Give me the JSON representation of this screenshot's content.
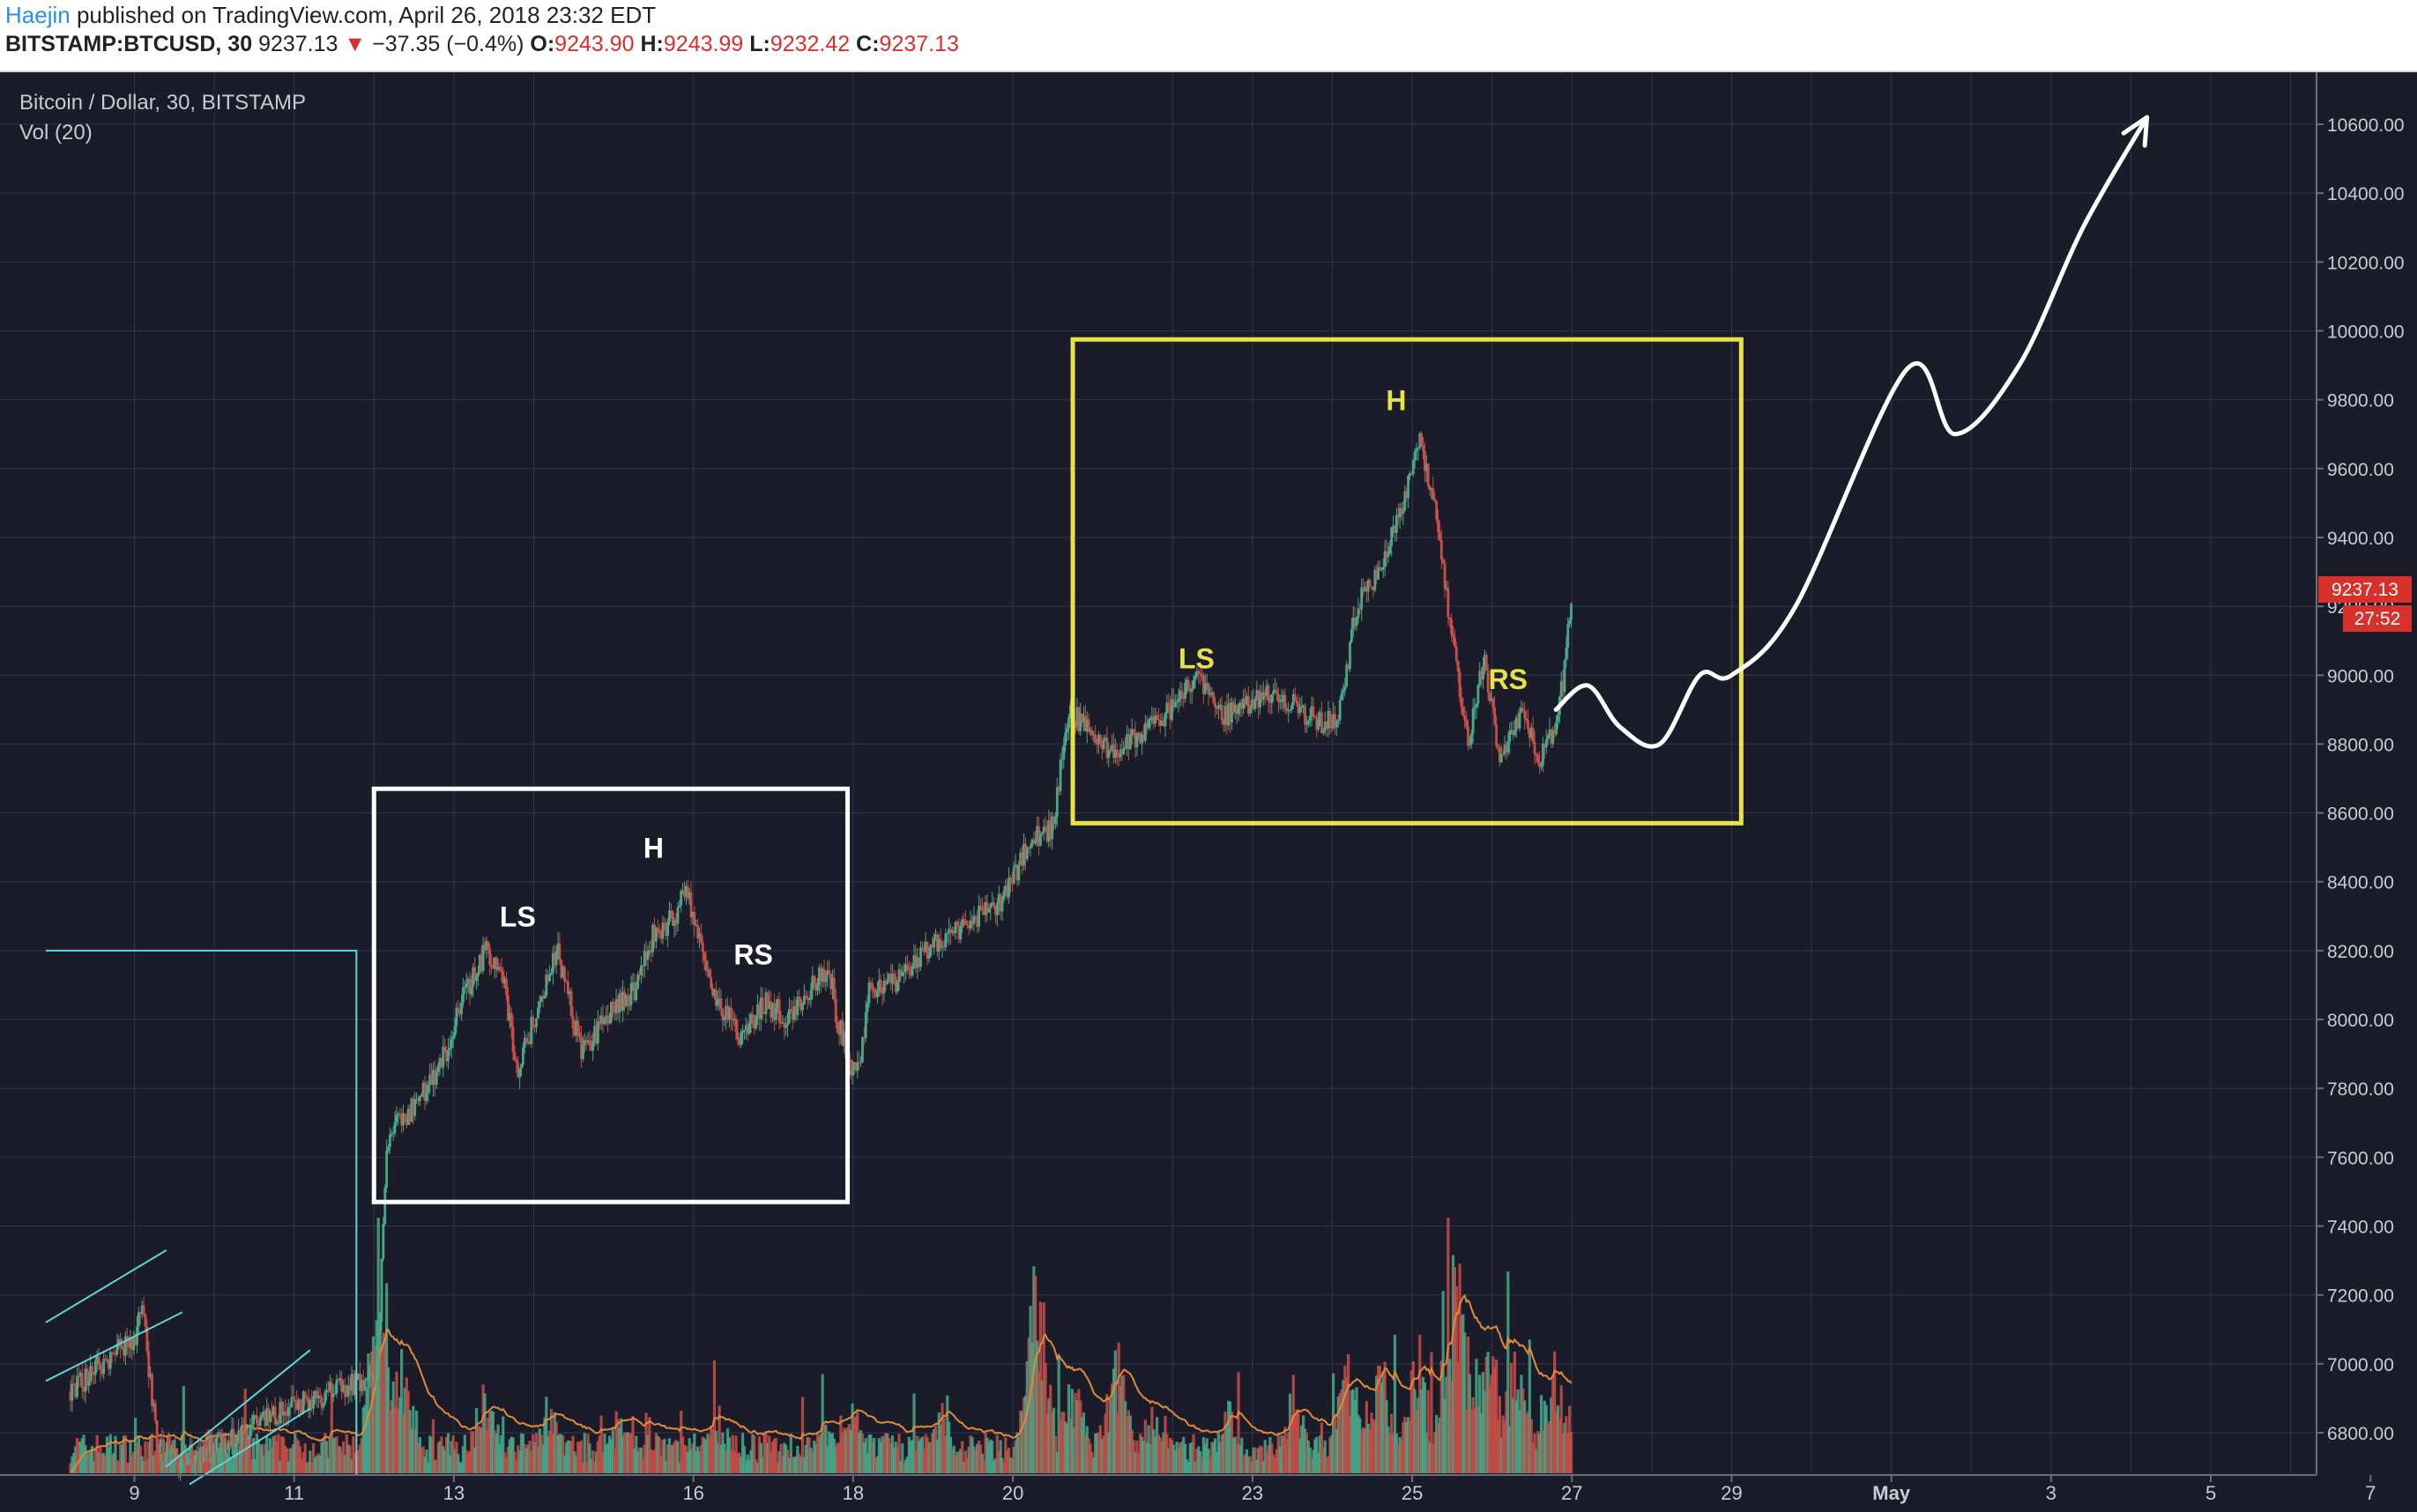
{
  "header": {
    "author": "Haejin",
    "published_text": "published on TradingView.com, April 26, 2018 23:32 EDT",
    "symbol": "BITSTAMP:BTCUSD, 30",
    "last": "9237.13",
    "change_arrow": "▼",
    "change": "−37.35 (−0.4%)",
    "o_label": "O:",
    "o_value": "9243.90",
    "h_label": "H:",
    "h_value": "9243.99",
    "l_label": "L:",
    "l_value": "9232.42",
    "c_label": "C:",
    "c_value": "9237.13"
  },
  "chart_data": {
    "type": "candlestick",
    "title": "Bitcoin / Dollar, 30, BITSTAMP",
    "subtitle": "Vol (20)",
    "ylim": [
      6650,
      10750
    ],
    "y_ticks": [
      "10600.00",
      "10400.00",
      "10200.00",
      "10000.00",
      "9800.00",
      "9600.00",
      "9400.00",
      "9200.00",
      "9000.00",
      "8800.00",
      "8600.00",
      "8400.00",
      "8200.00",
      "8000.00",
      "7800.00",
      "7600.00",
      "7400.00",
      "7200.00",
      "7000.00",
      "6800.00"
    ],
    "y_tick_values": [
      10600,
      10400,
      10200,
      10000,
      9800,
      9600,
      9400,
      9200,
      9000,
      8800,
      8600,
      8400,
      8200,
      8000,
      7800,
      7600,
      7400,
      7200,
      7000,
      6800
    ],
    "x_ticks": [
      "9",
      "11",
      "13",
      "16",
      "18",
      "20",
      "23",
      "25",
      "27",
      "29",
      "May",
      "3",
      "5",
      "7"
    ],
    "x_tick_days": [
      9,
      11,
      13,
      16,
      18,
      20,
      23,
      25,
      27,
      29,
      31,
      33,
      35,
      37
    ],
    "last_price_label": "9237.13",
    "countdown_label": "27:52",
    "last_price": 9237.13,
    "price_path": [
      [
        8.2,
        6920
      ],
      [
        8.6,
        7000
      ],
      [
        9.0,
        7080
      ],
      [
        9.1,
        7150
      ],
      [
        9.2,
        6950
      ],
      [
        9.3,
        6750
      ],
      [
        9.6,
        6720
      ],
      [
        10.0,
        6760
      ],
      [
        10.5,
        6820
      ],
      [
        11.0,
        6880
      ],
      [
        11.5,
        6920
      ],
      [
        11.9,
        6950
      ],
      [
        12.05,
        7000
      ],
      [
        12.15,
        7600
      ],
      [
        12.3,
        7700
      ],
      [
        12.5,
        7750
      ],
      [
        12.7,
        7820
      ],
      [
        12.9,
        7900
      ],
      [
        13.1,
        8050
      ],
      [
        13.4,
        8200
      ],
      [
        13.6,
        8150
      ],
      [
        13.8,
        7850
      ],
      [
        14.0,
        8000
      ],
      [
        14.3,
        8200
      ],
      [
        14.6,
        7900
      ],
      [
        14.9,
        8000
      ],
      [
        15.3,
        8100
      ],
      [
        15.5,
        8250
      ],
      [
        15.8,
        8300
      ],
      [
        15.9,
        8400
      ],
      [
        16.1,
        8200
      ],
      [
        16.3,
        8050
      ],
      [
        16.6,
        7950
      ],
      [
        16.9,
        8050
      ],
      [
        17.2,
        8000
      ],
      [
        17.5,
        8100
      ],
      [
        17.7,
        8150
      ],
      [
        17.8,
        8000
      ],
      [
        18.0,
        7850
      ],
      [
        18.1,
        7900
      ],
      [
        18.2,
        8100
      ],
      [
        18.5,
        8100
      ],
      [
        18.9,
        8200
      ],
      [
        19.2,
        8250
      ],
      [
        19.6,
        8300
      ],
      [
        19.9,
        8350
      ],
      [
        20.2,
        8520
      ],
      [
        20.5,
        8560
      ],
      [
        20.7,
        8900
      ],
      [
        20.9,
        8850
      ],
      [
        21.2,
        8780
      ],
      [
        21.6,
        8820
      ],
      [
        22.0,
        8900
      ],
      [
        22.3,
        9000
      ],
      [
        22.6,
        8880
      ],
      [
        22.9,
        8900
      ],
      [
        23.2,
        8950
      ],
      [
        23.5,
        8920
      ],
      [
        23.9,
        8850
      ],
      [
        24.1,
        8900
      ],
      [
        24.3,
        9200
      ],
      [
        24.6,
        9300
      ],
      [
        24.8,
        9450
      ],
      [
        24.95,
        9550
      ],
      [
        25.1,
        9700
      ],
      [
        25.3,
        9450
      ],
      [
        25.5,
        9100
      ],
      [
        25.7,
        8800
      ],
      [
        25.9,
        9050
      ],
      [
        26.1,
        8750
      ],
      [
        26.4,
        8900
      ],
      [
        26.6,
        8750
      ],
      [
        26.8,
        8850
      ],
      [
        26.9,
        9000
      ],
      [
        27.0,
        9237
      ]
    ],
    "volume_bars": [
      [
        12.05,
        0.75
      ],
      [
        12.35,
        0.55
      ],
      [
        13.4,
        0.4
      ],
      [
        14.2,
        0.35
      ],
      [
        15.1,
        0.3
      ],
      [
        16.3,
        0.3
      ],
      [
        17.6,
        0.28
      ],
      [
        18.0,
        0.3
      ],
      [
        19.1,
        0.3
      ],
      [
        20.3,
        0.92
      ],
      [
        20.75,
        0.45
      ],
      [
        21.3,
        0.55
      ],
      [
        21.8,
        0.35
      ],
      [
        22.7,
        0.3
      ],
      [
        23.5,
        0.4
      ],
      [
        24.2,
        0.5
      ],
      [
        24.6,
        0.55
      ],
      [
        25.05,
        0.6
      ],
      [
        25.55,
        1.0
      ],
      [
        25.95,
        0.65
      ],
      [
        26.3,
        0.55
      ],
      [
        26.75,
        0.55
      ],
      [
        27.05,
        0.4
      ]
    ],
    "annotations": {
      "box_white": {
        "x0": 12.0,
        "x1": 17.93,
        "y0": 7470,
        "y1": 8670
      },
      "box_yellow": {
        "x0": 20.75,
        "x1": 29.12,
        "y0": 8570,
        "y1": 9975
      },
      "white_labels": [
        {
          "text": "LS",
          "x": 13.8,
          "y": 8270
        },
        {
          "text": "H",
          "x": 15.5,
          "y": 8470
        },
        {
          "text": "RS",
          "x": 16.75,
          "y": 8160
        }
      ],
      "yellow_labels": [
        {
          "text": "LS",
          "x": 22.3,
          "y": 9020
        },
        {
          "text": "H",
          "x": 24.8,
          "y": 9770
        },
        {
          "text": "RS",
          "x": 26.2,
          "y": 8960
        }
      ],
      "projection_path": [
        [
          26.8,
          8900
        ],
        [
          27.2,
          8970
        ],
        [
          27.6,
          8850
        ],
        [
          28.1,
          8800
        ],
        [
          28.6,
          9000
        ],
        [
          29.0,
          9000
        ],
        [
          29.8,
          9200
        ],
        [
          31.2,
          9890
        ],
        [
          31.8,
          9700
        ],
        [
          32.6,
          9900
        ],
        [
          33.4,
          10300
        ],
        [
          34.2,
          10620
        ]
      ],
      "teal_box": {
        "x0": 8.0,
        "x1": 11.78,
        "y0": 6650,
        "y1": 8200
      },
      "teal_channels": [
        [
          [
            8.0,
            7120
          ],
          [
            9.4,
            7330
          ]
        ],
        [
          [
            8.0,
            6950
          ],
          [
            9.6,
            7150
          ]
        ],
        [
          [
            9.5,
            6700
          ],
          [
            11.2,
            7040
          ]
        ],
        [
          [
            9.8,
            6650
          ],
          [
            11.2,
            6870
          ]
        ]
      ]
    },
    "colors": {
      "background": "#1a1c29",
      "grid": "#33364a",
      "up": "#4aa88a",
      "down": "#c94f48",
      "white_annotation": "#ffffff",
      "yellow_annotation": "#e8e24a",
      "teal_annotation": "#5ed6d6",
      "volume_ma": "#e08a3c",
      "price_badge": "#d8302a"
    }
  }
}
